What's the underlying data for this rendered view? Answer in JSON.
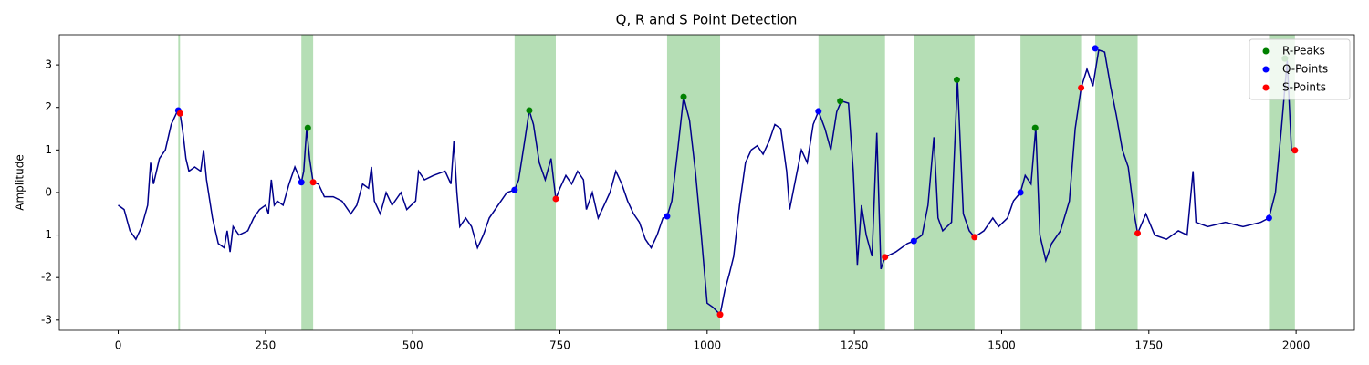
{
  "chart_data": {
    "type": "line",
    "title": "Q, R and S Point Detection",
    "ylabel": "Amplitude",
    "xlim": [
      -100,
      2099
    ],
    "ylim": [
      -3.24,
      3.71
    ],
    "xticks": [
      0,
      250,
      500,
      750,
      1000,
      1250,
      1500,
      1750,
      2000
    ],
    "yticks": [
      -3,
      -2,
      -1,
      0,
      1,
      2,
      3
    ],
    "legend": "upper right",
    "x": [
      0,
      10,
      20,
      30,
      40,
      50,
      55,
      60,
      70,
      80,
      90,
      100,
      105,
      110,
      115,
      120,
      130,
      140,
      145,
      150,
      160,
      170,
      180,
      185,
      190,
      195,
      205,
      220,
      230,
      240,
      250,
      255,
      260,
      265,
      270,
      280,
      290,
      300,
      311,
      315,
      320,
      325,
      331,
      340,
      350,
      365,
      380,
      395,
      405,
      415,
      425,
      430,
      435,
      445,
      455,
      465,
      480,
      490,
      505,
      510,
      520,
      535,
      555,
      565,
      570,
      575,
      580,
      590,
      600,
      610,
      620,
      630,
      645,
      660,
      673,
      680,
      690,
      698,
      705,
      715,
      725,
      735,
      743,
      750,
      760,
      770,
      780,
      790,
      795,
      805,
      815,
      825,
      835,
      845,
      855,
      865,
      875,
      885,
      895,
      905,
      915,
      925,
      932,
      940,
      950,
      960,
      970,
      980,
      990,
      1000,
      1010,
      1022,
      1030,
      1038,
      1045,
      1055,
      1065,
      1075,
      1085,
      1095,
      1105,
      1115,
      1125,
      1135,
      1140,
      1150,
      1160,
      1170,
      1180,
      1189,
      1200,
      1210,
      1220,
      1228,
      1240,
      1248,
      1255,
      1262,
      1270,
      1280,
      1288,
      1295,
      1302,
      1320,
      1340,
      1351,
      1365,
      1375,
      1385,
      1392,
      1400,
      1415,
      1425,
      1435,
      1445,
      1454,
      1470,
      1485,
      1495,
      1510,
      1520,
      1532,
      1540,
      1550,
      1558,
      1565,
      1575,
      1585,
      1600,
      1615,
      1625,
      1635,
      1645,
      1655,
      1665,
      1675,
      1685,
      1695,
      1705,
      1715,
      1725,
      1731,
      1745,
      1760,
      1780,
      1800,
      1815,
      1825,
      1830,
      1850,
      1880,
      1910,
      1940,
      1954,
      1965,
      1975,
      1985,
      1992,
      1998
    ],
    "series": [
      {
        "color": "#00008b",
        "values": [
          -0.3,
          -0.4,
          -0.9,
          -1.1,
          -0.8,
          -0.3,
          0.7,
          0.2,
          0.8,
          1.0,
          1.6,
          1.9,
          1.86,
          1.4,
          0.8,
          0.5,
          0.6,
          0.5,
          1.0,
          0.3,
          -0.6,
          -1.2,
          -1.3,
          -0.9,
          -1.4,
          -0.8,
          -1.0,
          -0.9,
          -0.6,
          -0.4,
          -0.3,
          -0.5,
          0.3,
          -0.3,
          -0.2,
          -0.3,
          0.2,
          0.6,
          0.24,
          0.5,
          1.5,
          0.8,
          0.24,
          0.2,
          -0.1,
          -0.1,
          -0.2,
          -0.5,
          -0.3,
          0.2,
          0.1,
          0.6,
          -0.2,
          -0.5,
          0.0,
          -0.3,
          0.0,
          -0.4,
          -0.2,
          0.5,
          0.3,
          0.4,
          0.5,
          0.2,
          1.2,
          0.0,
          -0.8,
          -0.6,
          -0.8,
          -1.3,
          -1.0,
          -0.6,
          -0.3,
          0.0,
          0.06,
          0.3,
          1.2,
          1.93,
          1.6,
          0.7,
          0.3,
          0.8,
          -0.15,
          0.1,
          0.4,
          0.2,
          0.5,
          0.3,
          -0.4,
          0.0,
          -0.6,
          -0.3,
          0.0,
          0.5,
          0.2,
          -0.2,
          -0.5,
          -0.7,
          -1.1,
          -1.3,
          -1.0,
          -0.6,
          -0.56,
          -0.2,
          1.0,
          2.25,
          1.7,
          0.5,
          -1.0,
          -2.6,
          -2.7,
          -2.87,
          -2.3,
          -1.9,
          -1.5,
          -0.3,
          0.7,
          1.0,
          1.1,
          0.9,
          1.2,
          1.6,
          1.5,
          0.5,
          -0.4,
          0.3,
          1.0,
          0.7,
          1.6,
          1.91,
          1.5,
          1.0,
          1.9,
          2.15,
          2.1,
          0.5,
          -1.7,
          -0.3,
          -1.0,
          -1.5,
          1.4,
          -1.8,
          -1.52,
          -1.4,
          -1.2,
          -1.14,
          -1.0,
          -0.3,
          1.3,
          -0.6,
          -0.9,
          -0.7,
          2.65,
          -0.5,
          -0.9,
          -1.05,
          -0.9,
          -0.6,
          -0.8,
          -0.6,
          -0.2,
          0.0,
          0.4,
          0.2,
          1.52,
          -1.0,
          -1.6,
          -1.2,
          -0.9,
          -0.2,
          1.5,
          2.46,
          2.9,
          2.5,
          3.35,
          3.3,
          2.5,
          1.8,
          1.0,
          0.6,
          -0.5,
          -0.96,
          -0.5,
          -1.0,
          -1.1,
          -0.9,
          -1.0,
          0.5,
          -0.7,
          -0.8,
          -0.7,
          -0.8,
          -0.7,
          -0.6,
          0.0,
          1.5,
          3.1,
          1.0,
          0.99
        ]
      }
    ],
    "markers": [
      {
        "name": "R-Peaks",
        "color": "#008000",
        "x": [
          322,
          698,
          960,
          1226,
          1424,
          1557,
          1981
        ],
        "values": [
          1.52,
          1.93,
          2.25,
          2.15,
          2.65,
          1.52,
          3.15
        ]
      },
      {
        "name": "Q-Points",
        "color": "#0000ff",
        "x": [
          102,
          311,
          673,
          932,
          1189,
          1351,
          1532,
          1659,
          1954
        ],
        "values": [
          1.93,
          0.24,
          0.06,
          -0.56,
          1.91,
          -1.14,
          0.0,
          3.39,
          -0.6
        ]
      },
      {
        "name": "S-Points",
        "color": "#ff0000",
        "x": [
          105,
          331,
          743,
          1022,
          1302,
          1454,
          1635,
          1731,
          1998
        ],
        "values": [
          1.86,
          0.24,
          -0.15,
          -2.87,
          -1.52,
          -1.05,
          2.46,
          -0.96,
          0.99
        ]
      }
    ],
    "spans": {
      "color": "#2ca02c",
      "ranges": [
        [
          102,
          105
        ],
        [
          311,
          331
        ],
        [
          673,
          743
        ],
        [
          932,
          1022
        ],
        [
          1189,
          1302
        ],
        [
          1351,
          1454
        ],
        [
          1532,
          1635
        ],
        [
          1659,
          1731
        ],
        [
          1954,
          1998
        ]
      ]
    }
  }
}
